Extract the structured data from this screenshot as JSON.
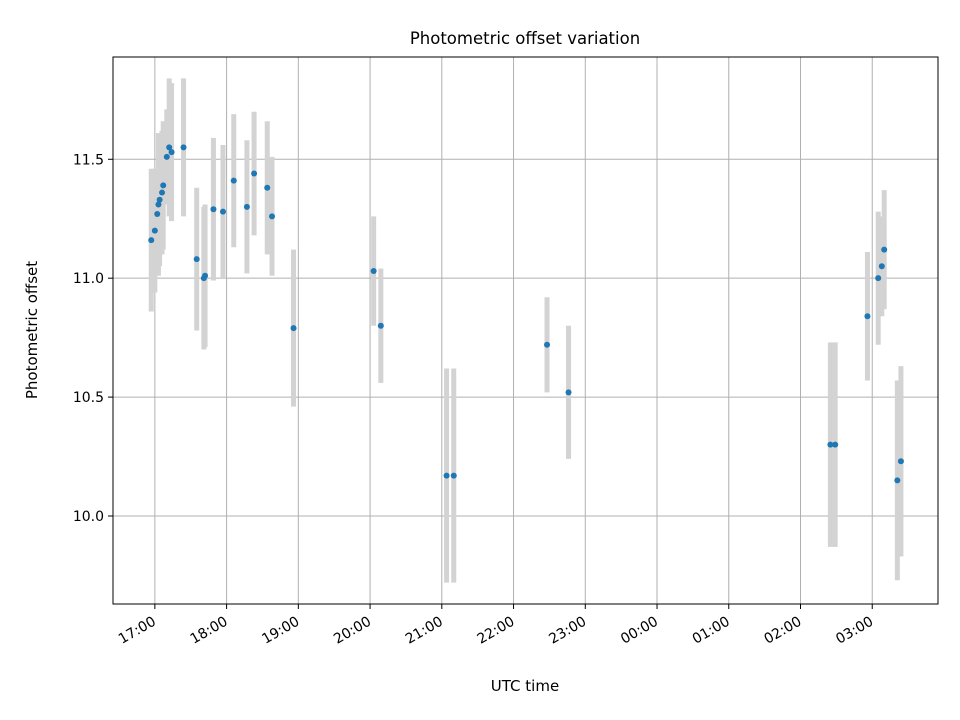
{
  "chart_data": {
    "type": "scatter",
    "title": "Photometric offset variation",
    "xlabel": "UTC time",
    "ylabel": "Photometric offset",
    "grid": true,
    "legend": "none",
    "x_ticks": [
      "17:00",
      "18:00",
      "19:00",
      "20:00",
      "21:00",
      "22:00",
      "23:00",
      "00:00",
      "01:00",
      "02:00",
      "03:00"
    ],
    "y_ticks": [
      "10.0",
      "10.5",
      "11.0",
      "11.5"
    ],
    "xlim": [
      "16:25",
      "03:55"
    ],
    "ylim": [
      9.63,
      11.93
    ],
    "colors": {
      "point": "#1f77b4",
      "errorbar": "#d3d3d3",
      "grid": "#b0b0b0"
    },
    "points": [
      {
        "t": "16:57",
        "y": 11.16,
        "err": 0.3
      },
      {
        "t": "17:00",
        "y": 11.2,
        "err": 0.26
      },
      {
        "t": "17:02",
        "y": 11.27,
        "err": 0.19
      },
      {
        "t": "17:03",
        "y": 11.31,
        "err": 0.3
      },
      {
        "t": "17:04",
        "y": 11.33,
        "err": 0.28
      },
      {
        "t": "17:06",
        "y": 11.36,
        "err": 0.26
      },
      {
        "t": "17:07",
        "y": 11.39,
        "err": 0.27
      },
      {
        "t": "17:10",
        "y": 11.51,
        "err": 0.2
      },
      {
        "t": "17:12",
        "y": 11.55,
        "err": 0.29
      },
      {
        "t": "17:14",
        "y": 11.53,
        "err": 0.29
      },
      {
        "t": "17:24",
        "y": 11.55,
        "err": 0.29
      },
      {
        "t": "17:35",
        "y": 11.08,
        "err": 0.3
      },
      {
        "t": "17:41",
        "y": 11.0,
        "err": 0.3
      },
      {
        "t": "17:42",
        "y": 11.01,
        "err": 0.3
      },
      {
        "t": "17:49",
        "y": 11.29,
        "err": 0.3
      },
      {
        "t": "17:57",
        "y": 11.28,
        "err": 0.28
      },
      {
        "t": "18:06",
        "y": 11.41,
        "err": 0.28
      },
      {
        "t": "18:17",
        "y": 11.3,
        "err": 0.28
      },
      {
        "t": "18:23",
        "y": 11.44,
        "err": 0.26
      },
      {
        "t": "18:34",
        "y": 11.38,
        "err": 0.28
      },
      {
        "t": "18:38",
        "y": 11.26,
        "err": 0.25
      },
      {
        "t": "18:56",
        "y": 10.79,
        "err": 0.33
      },
      {
        "t": "20:03",
        "y": 11.03,
        "err": 0.23
      },
      {
        "t": "20:09",
        "y": 10.8,
        "err": 0.24
      },
      {
        "t": "21:04",
        "y": 10.17,
        "err": 0.45
      },
      {
        "t": "21:10",
        "y": 10.17,
        "err": 0.45
      },
      {
        "t": "22:28",
        "y": 10.72,
        "err": 0.2
      },
      {
        "t": "22:46",
        "y": 10.52,
        "err": 0.28
      },
      {
        "t": "02:25",
        "y": 10.3,
        "err": 0.43
      },
      {
        "t": "02:29",
        "y": 10.3,
        "err": 0.43
      },
      {
        "t": "02:56",
        "y": 10.84,
        "err": 0.27
      },
      {
        "t": "03:05",
        "y": 11.0,
        "err": 0.28
      },
      {
        "t": "03:08",
        "y": 11.05,
        "err": 0.21
      },
      {
        "t": "03:10",
        "y": 11.12,
        "err": 0.25
      },
      {
        "t": "03:21",
        "y": 10.15,
        "err": 0.42
      },
      {
        "t": "03:24",
        "y": 10.23,
        "err": 0.4
      }
    ]
  }
}
